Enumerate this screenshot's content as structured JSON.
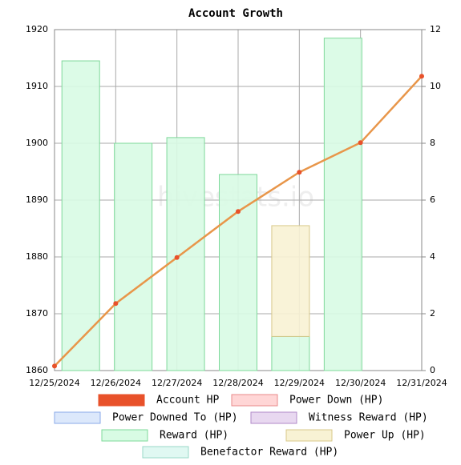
{
  "chart_data": {
    "type": "bar_line",
    "title": "Account Growth",
    "watermark": "hivestats.io",
    "categories": [
      "12/25/2024",
      "12/26/2024",
      "12/27/2024",
      "12/28/2024",
      "12/29/2024",
      "12/30/2024",
      "12/31/2024"
    ],
    "ylim": [
      1860,
      1920
    ],
    "yticks": [
      1860,
      1870,
      1880,
      1890,
      1900,
      1910,
      1920
    ],
    "y2lim": [
      0,
      12
    ],
    "y2ticks": [
      0,
      2,
      4,
      6,
      8,
      10,
      12
    ],
    "grid": true,
    "series": [
      {
        "name": "Account HP",
        "type": "line",
        "axis": "y",
        "color": "#e8512a",
        "line_color": "#e8964a",
        "border": "#e8512a",
        "values": [
          1860.8,
          1871.8,
          1879.9,
          1888,
          1894.9,
          1900.1,
          1911.8
        ]
      },
      {
        "name": "Power Down (HP)",
        "type": "bar",
        "axis": "y2",
        "color": "#ffd6d6",
        "border": "#e88a8a",
        "values": [
          null,
          null,
          null,
          null,
          null,
          null,
          null
        ]
      },
      {
        "name": "Power Downed To (HP)",
        "type": "bar",
        "axis": "y2",
        "color": "#dce8fb",
        "border": "#8aaae8",
        "values": [
          null,
          null,
          null,
          null,
          null,
          null,
          null
        ]
      },
      {
        "name": "Witness Reward (HP)",
        "type": "bar",
        "axis": "y2",
        "color": "#e8d8f0",
        "border": "#b08ac8",
        "values": [
          null,
          null,
          null,
          null,
          null,
          null,
          null
        ]
      },
      {
        "name": "Reward (HP)",
        "type": "bar",
        "axis": "y2",
        "color": "#d8fbe4",
        "border": "#7ed89a",
        "values": [
          10.9,
          8.0,
          8.2,
          6.9,
          1.2,
          11.7,
          null
        ]
      },
      {
        "name": "Power Up (HP)",
        "type": "bar",
        "axis": "y2",
        "color": "#f8f2d4",
        "border": "#d8c88a",
        "values": [
          null,
          null,
          null,
          null,
          3.9,
          null,
          null
        ]
      },
      {
        "name": "Benefactor Reward (HP)",
        "type": "bar",
        "axis": "y2",
        "color": "#e0f8f2",
        "border": "#9ad8c8",
        "values": [
          null,
          null,
          null,
          null,
          null,
          null,
          null
        ]
      }
    ]
  }
}
